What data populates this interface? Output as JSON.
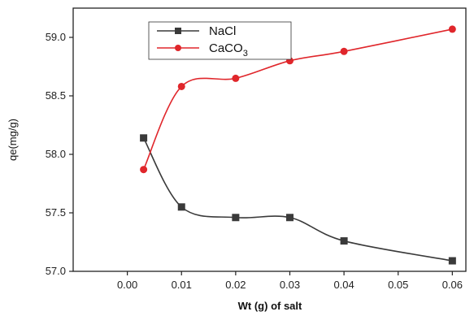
{
  "chart_data": {
    "type": "line",
    "title": "",
    "xlabel": "Wt (g) of salt",
    "ylabel": "qe(mg/g)",
    "xlim": [
      -0.01,
      0.0625
    ],
    "ylim": [
      57.0,
      59.25
    ],
    "x_ticks": [
      0.0,
      0.01,
      0.02,
      0.03,
      0.04,
      0.05,
      0.06
    ],
    "x_tick_labels": [
      "0.00",
      "0.01",
      "0.02",
      "0.03",
      "0.04",
      "0.05",
      "0.06"
    ],
    "y_ticks": [
      57.0,
      57.5,
      58.0,
      58.5,
      59.0
    ],
    "y_tick_labels": [
      "57.0",
      "57.5",
      "58.0",
      "58.5",
      "59.0"
    ],
    "grid": false,
    "legend_position": "top-left",
    "series": [
      {
        "name": "NaCl",
        "color": "#3a3a3a",
        "marker": "square",
        "x": [
          0.003,
          0.01,
          0.02,
          0.03,
          0.04,
          0.06
        ],
        "y": [
          58.14,
          57.55,
          57.46,
          57.46,
          57.26,
          57.09
        ]
      },
      {
        "name": "CaCO3",
        "legend_base": "CaCO",
        "legend_subscript": "3",
        "color": "#e0262b",
        "marker": "circle",
        "x": [
          0.003,
          0.01,
          0.02,
          0.03,
          0.04,
          0.06
        ],
        "y": [
          57.87,
          58.58,
          58.65,
          58.8,
          58.88,
          59.07
        ]
      }
    ]
  }
}
